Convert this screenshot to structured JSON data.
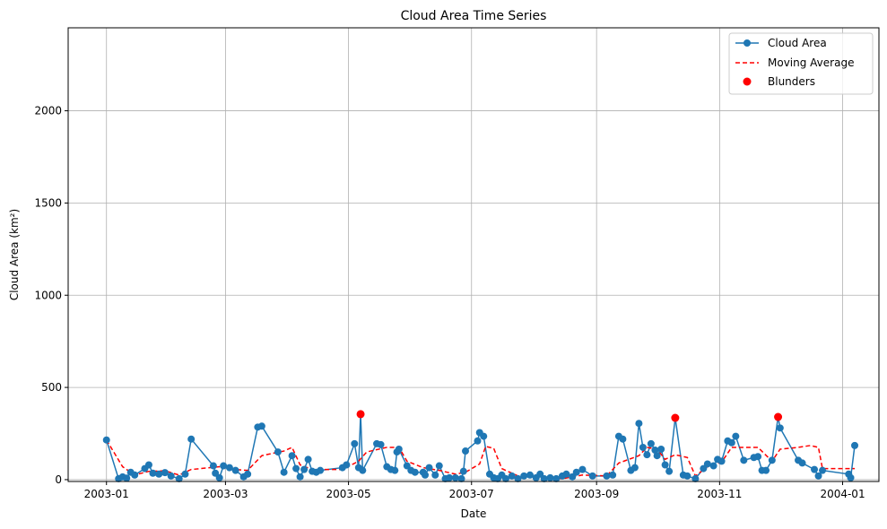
{
  "chart_data": {
    "type": "line",
    "title": "Cloud Area Time Series",
    "xlabel": "Date",
    "ylabel": "Cloud Area (km²)",
    "xlim": [
      "2002-12-13",
      "2004-01-19"
    ],
    "ylim": [
      -10,
      2450
    ],
    "grid": true,
    "legend_position": "top-right",
    "x_tick_labels": [
      "2003-01",
      "2003-03",
      "2003-05",
      "2003-07",
      "2003-09",
      "2003-11",
      "2004-01"
    ],
    "y_tick_labels": [
      "0",
      "500",
      "1000",
      "1500",
      "2000"
    ],
    "x_ticks": [
      "2003-01-01",
      "2003-03-01",
      "2003-05-01",
      "2003-07-01",
      "2003-09-01",
      "2003-11-01",
      "2004-01-01"
    ],
    "y_ticks": [
      0,
      500,
      1000,
      1500,
      2000
    ],
    "colors": {
      "series": "#1f77b4",
      "moving_average": "#ff0000",
      "blunders": "#ff0000",
      "grid": "#b0b0b0"
    },
    "series": [
      {
        "name": "Cloud Area",
        "style": "line-marker",
        "points": [
          [
            "2003-01-01",
            215
          ],
          [
            "2003-01-07",
            5
          ],
          [
            "2003-01-09",
            15
          ],
          [
            "2003-01-11",
            8
          ],
          [
            "2003-01-13",
            40
          ],
          [
            "2003-01-15",
            25
          ],
          [
            "2003-01-20",
            60
          ],
          [
            "2003-01-22",
            80
          ],
          [
            "2003-01-24",
            35
          ],
          [
            "2003-01-27",
            30
          ],
          [
            "2003-01-30",
            38
          ],
          [
            "2003-02-02",
            20
          ],
          [
            "2003-02-06",
            5
          ],
          [
            "2003-02-09",
            30
          ],
          [
            "2003-02-12",
            220
          ],
          [
            "2003-02-23",
            75
          ],
          [
            "2003-02-24",
            35
          ],
          [
            "2003-02-26",
            10
          ],
          [
            "2003-02-28",
            75
          ],
          [
            "2003-03-03",
            65
          ],
          [
            "2003-03-06",
            50
          ],
          [
            "2003-03-10",
            15
          ],
          [
            "2003-03-12",
            30
          ],
          [
            "2003-03-17",
            285
          ],
          [
            "2003-03-19",
            290
          ],
          [
            "2003-03-27",
            150
          ],
          [
            "2003-03-30",
            40
          ],
          [
            "2003-04-03",
            130
          ],
          [
            "2003-04-05",
            60
          ],
          [
            "2003-04-07",
            15
          ],
          [
            "2003-04-09",
            55
          ],
          [
            "2003-04-11",
            110
          ],
          [
            "2003-04-13",
            45
          ],
          [
            "2003-04-15",
            40
          ],
          [
            "2003-04-17",
            50
          ],
          [
            "2003-04-28",
            65
          ],
          [
            "2003-04-30",
            80
          ],
          [
            "2003-05-04",
            195
          ],
          [
            "2003-05-06",
            65
          ],
          [
            "2003-05-08",
            50
          ],
          [
            "2003-05-07",
            355
          ],
          [
            "2003-05-15",
            195
          ],
          [
            "2003-05-17",
            190
          ],
          [
            "2003-05-20",
            70
          ],
          [
            "2003-05-22",
            55
          ],
          [
            "2003-05-24",
            50
          ],
          [
            "2003-05-25",
            150
          ],
          [
            "2003-05-26",
            165
          ],
          [
            "2003-05-30",
            75
          ],
          [
            "2003-06-01",
            50
          ],
          [
            "2003-06-03",
            40
          ],
          [
            "2003-06-07",
            40
          ],
          [
            "2003-06-08",
            25
          ],
          [
            "2003-06-10",
            65
          ],
          [
            "2003-06-13",
            25
          ],
          [
            "2003-06-15",
            75
          ],
          [
            "2003-06-18",
            5
          ],
          [
            "2003-06-20",
            10
          ],
          [
            "2003-06-23",
            10
          ],
          [
            "2003-06-26",
            5
          ],
          [
            "2003-06-27",
            45
          ],
          [
            "2003-06-28",
            155
          ],
          [
            "2003-07-04",
            210
          ],
          [
            "2003-07-05",
            255
          ],
          [
            "2003-07-07",
            235
          ],
          [
            "2003-07-10",
            30
          ],
          [
            "2003-07-12",
            10
          ],
          [
            "2003-07-14",
            5
          ],
          [
            "2003-07-16",
            25
          ],
          [
            "2003-07-18",
            5
          ],
          [
            "2003-07-21",
            20
          ],
          [
            "2003-07-24",
            5
          ],
          [
            "2003-07-27",
            20
          ],
          [
            "2003-07-30",
            25
          ],
          [
            "2003-08-02",
            10
          ],
          [
            "2003-08-04",
            30
          ],
          [
            "2003-08-06",
            5
          ],
          [
            "2003-08-09",
            10
          ],
          [
            "2003-08-12",
            5
          ],
          [
            "2003-08-15",
            20
          ],
          [
            "2003-08-17",
            30
          ],
          [
            "2003-08-20",
            15
          ],
          [
            "2003-08-22",
            40
          ],
          [
            "2003-08-25",
            55
          ],
          [
            "2003-08-30",
            20
          ],
          [
            "2003-09-06",
            20
          ],
          [
            "2003-09-09",
            25
          ],
          [
            "2003-09-12",
            235
          ],
          [
            "2003-09-14",
            220
          ],
          [
            "2003-09-18",
            50
          ],
          [
            "2003-09-20",
            65
          ],
          [
            "2003-09-22",
            305
          ],
          [
            "2003-09-24",
            175
          ],
          [
            "2003-09-26",
            135
          ],
          [
            "2003-09-28",
            195
          ],
          [
            "2003-09-30",
            160
          ],
          [
            "2003-10-01",
            130
          ],
          [
            "2003-10-03",
            165
          ],
          [
            "2003-10-05",
            80
          ],
          [
            "2003-10-07",
            45
          ],
          [
            "2003-10-10",
            335
          ],
          [
            "2003-10-14",
            25
          ],
          [
            "2003-10-16",
            20
          ],
          [
            "2003-10-20",
            5
          ],
          [
            "2003-10-24",
            60
          ],
          [
            "2003-10-26",
            85
          ],
          [
            "2003-10-29",
            75
          ],
          [
            "2003-10-31",
            110
          ],
          [
            "2003-11-02",
            100
          ],
          [
            "2003-11-05",
            210
          ],
          [
            "2003-11-07",
            200
          ],
          [
            "2003-11-09",
            235
          ],
          [
            "2003-11-13",
            105
          ],
          [
            "2003-11-18",
            120
          ],
          [
            "2003-11-20",
            125
          ],
          [
            "2003-11-22",
            50
          ],
          [
            "2003-11-24",
            50
          ],
          [
            "2003-11-27",
            105
          ],
          [
            "2003-11-30",
            340
          ],
          [
            "2003-12-01",
            280
          ],
          [
            "2003-12-10",
            105
          ],
          [
            "2003-12-12",
            90
          ],
          [
            "2003-12-18",
            55
          ],
          [
            "2003-12-20",
            20
          ],
          [
            "2003-12-22",
            50
          ],
          [
            "2004-01-04",
            30
          ],
          [
            "2004-01-05",
            10
          ],
          [
            "2004-01-07",
            185
          ]
        ]
      },
      {
        "name": "Moving Average",
        "style": "dashed-line",
        "points": [
          [
            "2003-01-01",
            215
          ],
          [
            "2003-01-09",
            70
          ],
          [
            "2003-01-15",
            25
          ],
          [
            "2003-01-22",
            45
          ],
          [
            "2003-01-30",
            48
          ],
          [
            "2003-02-06",
            25
          ],
          [
            "2003-02-12",
            55
          ],
          [
            "2003-02-26",
            70
          ],
          [
            "2003-03-06",
            55
          ],
          [
            "2003-03-12",
            50
          ],
          [
            "2003-03-19",
            130
          ],
          [
            "2003-03-30",
            155
          ],
          [
            "2003-04-03",
            175
          ],
          [
            "2003-04-07",
            80
          ],
          [
            "2003-04-13",
            55
          ],
          [
            "2003-04-28",
            55
          ],
          [
            "2003-05-06",
            100
          ],
          [
            "2003-05-10",
            150
          ],
          [
            "2003-05-20",
            175
          ],
          [
            "2003-05-26",
            175
          ],
          [
            "2003-05-30",
            100
          ],
          [
            "2003-06-07",
            65
          ],
          [
            "2003-06-15",
            50
          ],
          [
            "2003-06-23",
            30
          ],
          [
            "2003-06-28",
            40
          ],
          [
            "2003-07-05",
            85
          ],
          [
            "2003-07-08",
            180
          ],
          [
            "2003-07-12",
            170
          ],
          [
            "2003-07-16",
            60
          ],
          [
            "2003-07-24",
            20
          ],
          [
            "2003-08-04",
            15
          ],
          [
            "2003-08-15",
            5
          ],
          [
            "2003-08-25",
            25
          ],
          [
            "2003-09-06",
            20
          ],
          [
            "2003-09-12",
            90
          ],
          [
            "2003-09-22",
            130
          ],
          [
            "2003-09-26",
            175
          ],
          [
            "2003-10-01",
            165
          ],
          [
            "2003-10-05",
            110
          ],
          [
            "2003-10-10",
            135
          ],
          [
            "2003-10-16",
            120
          ],
          [
            "2003-10-20",
            20
          ],
          [
            "2003-10-26",
            70
          ],
          [
            "2003-11-02",
            95
          ],
          [
            "2003-11-07",
            175
          ],
          [
            "2003-11-20",
            175
          ],
          [
            "2003-11-27",
            100
          ],
          [
            "2003-12-01",
            165
          ],
          [
            "2003-12-10",
            175
          ],
          [
            "2003-12-16",
            185
          ],
          [
            "2003-12-20",
            175
          ],
          [
            "2003-12-22",
            60
          ],
          [
            "2004-01-07",
            60
          ]
        ]
      },
      {
        "name": "Blunders",
        "style": "scatter",
        "points": [
          [
            "2003-05-07",
            355
          ],
          [
            "2003-10-10",
            335
          ],
          [
            "2003-11-30",
            340
          ]
        ]
      }
    ]
  }
}
